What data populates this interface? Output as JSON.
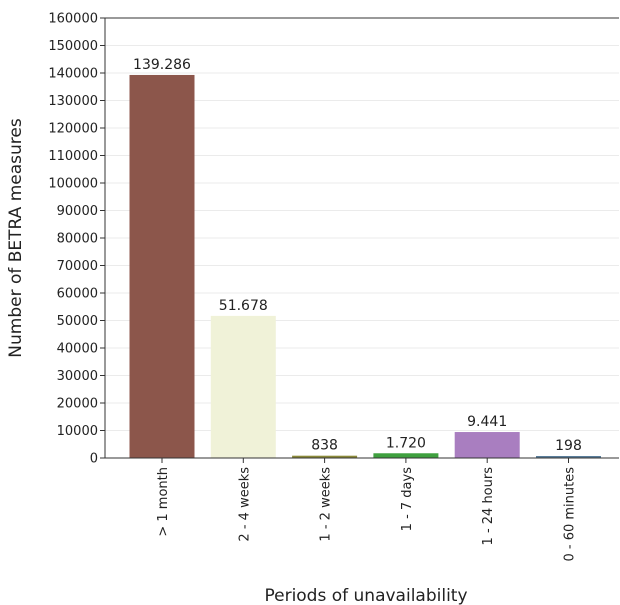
{
  "chart_data": {
    "type": "bar",
    "title": "",
    "xlabel": "Periods of unavailability",
    "ylabel": "Number of BETRA measures",
    "categories": [
      "> 1 month",
      "2 - 4 weeks",
      "1 - 2 weeks",
      "1 - 7 days",
      "1 - 24 hours",
      "0 - 60 minutes"
    ],
    "values": [
      139286,
      51678,
      838,
      1720,
      9441,
      198
    ],
    "value_labels": [
      "139.286",
      "51.678",
      "838",
      "1.720",
      "9.441",
      "198"
    ],
    "colors": [
      "#8c564b",
      "#f0f2d8",
      "#8b8a3a",
      "#3fa03f",
      "#a97ec0",
      "#5a7d9a"
    ],
    "ylim": [
      0,
      160000
    ],
    "yticks": [
      0,
      10000,
      20000,
      30000,
      40000,
      50000,
      60000,
      70000,
      80000,
      90000,
      100000,
      110000,
      120000,
      130000,
      140000,
      150000,
      160000
    ],
    "grid": true,
    "legend": "none"
  }
}
